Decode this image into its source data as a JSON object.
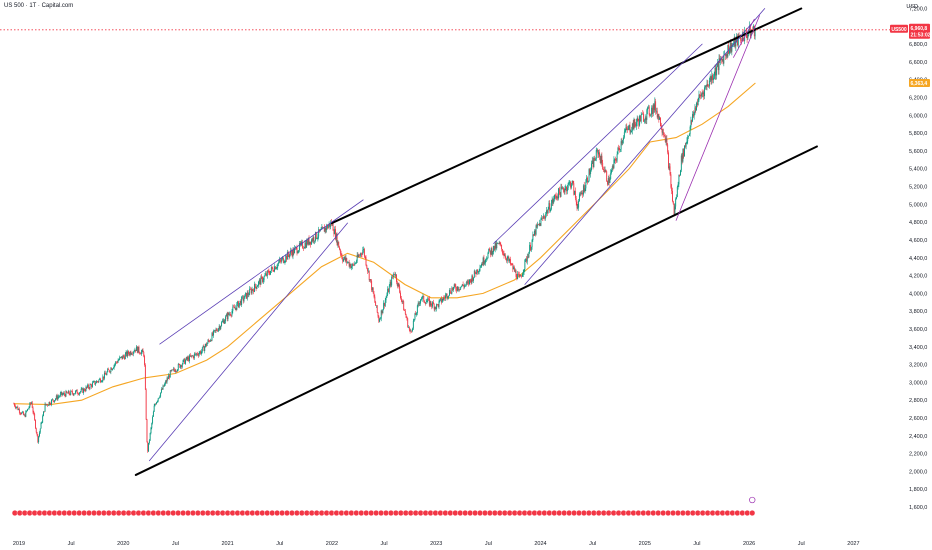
{
  "header": {
    "title": "US 500 · 1T · Capital.com",
    "currency": "USD"
  },
  "price_badges": {
    "symbol_label": "US500",
    "last_price": "6,960,8",
    "countdown": "21:53:02",
    "ma_value": "6,363,4"
  },
  "colors": {
    "up": "#089981",
    "down": "#f23645",
    "ma": "#f5a623",
    "channel": "#000000",
    "sub_channel": "#5b3fb5",
    "last_line": "#f23645",
    "event_marker": "#f23645"
  },
  "chart_data": {
    "type": "candlestick",
    "title": "US 500 · 1T · Capital.com",
    "ylabel": "USD",
    "ylim": [
      1520,
      7300
    ],
    "y_ticks": [
      {
        "v": 1600,
        "label": "1,600,0"
      },
      {
        "v": 1800,
        "label": "1,800,0"
      },
      {
        "v": 2000,
        "label": "2,000,0"
      },
      {
        "v": 2200,
        "label": "2,200,0"
      },
      {
        "v": 2400,
        "label": "2,400,0"
      },
      {
        "v": 2600,
        "label": "2,600,0"
      },
      {
        "v": 2800,
        "label": "2,800,0"
      },
      {
        "v": 3000,
        "label": "3,000,0"
      },
      {
        "v": 3200,
        "label": "3,200,0"
      },
      {
        "v": 3400,
        "label": "3,400,0"
      },
      {
        "v": 3600,
        "label": "3,600,0"
      },
      {
        "v": 3800,
        "label": "3,800,0"
      },
      {
        "v": 4000,
        "label": "4,000,0"
      },
      {
        "v": 4200,
        "label": "4,200,0"
      },
      {
        "v": 4400,
        "label": "4,400,0"
      },
      {
        "v": 4600,
        "label": "4,600,0"
      },
      {
        "v": 4800,
        "label": "4,800,0"
      },
      {
        "v": 5000,
        "label": "5,000,0"
      },
      {
        "v": 5200,
        "label": "5,200,0"
      },
      {
        "v": 5400,
        "label": "5,400,0"
      },
      {
        "v": 5600,
        "label": "5,600,0"
      },
      {
        "v": 5800,
        "label": "5,800,0"
      },
      {
        "v": 6000,
        "label": "6,000,0"
      },
      {
        "v": 6200,
        "label": "6,200,0"
      },
      {
        "v": 6400,
        "label": "6,400,0"
      },
      {
        "v": 6600,
        "label": "6,600,0"
      },
      {
        "v": 6800,
        "label": "6,800,0"
      },
      {
        "v": 7000,
        "label": "7,000,0"
      },
      {
        "v": 7200,
        "label": "7,200,0"
      }
    ],
    "x_range": [
      2018.95,
      2027.35
    ],
    "x_ticks": [
      {
        "t": 2019.0,
        "label": "2019"
      },
      {
        "t": 2019.5,
        "label": "Jul"
      },
      {
        "t": 2020.0,
        "label": "2020"
      },
      {
        "t": 2020.5,
        "label": "Jul"
      },
      {
        "t": 2021.0,
        "label": "2021"
      },
      {
        "t": 2021.5,
        "label": "Jul"
      },
      {
        "t": 2022.0,
        "label": "2022"
      },
      {
        "t": 2022.5,
        "label": "Jul"
      },
      {
        "t": 2023.0,
        "label": "2023"
      },
      {
        "t": 2023.5,
        "label": "Jul"
      },
      {
        "t": 2024.0,
        "label": "2024"
      },
      {
        "t": 2024.5,
        "label": "Jul"
      },
      {
        "t": 2025.0,
        "label": "2025"
      },
      {
        "t": 2025.5,
        "label": "Jul"
      },
      {
        "t": 2026.0,
        "label": "2026"
      },
      {
        "t": 2026.5,
        "label": "Jul"
      },
      {
        "t": 2027.0,
        "label": "2027"
      }
    ],
    "price_keypoints": [
      [
        2018.95,
        2760
      ],
      [
        2019.05,
        2620
      ],
      [
        2019.12,
        2780
      ],
      [
        2019.18,
        2350
      ],
      [
        2019.25,
        2740
      ],
      [
        2019.4,
        2860
      ],
      [
        2019.6,
        2900
      ],
      [
        2019.8,
        3050
      ],
      [
        2019.95,
        3250
      ],
      [
        2020.12,
        3380
      ],
      [
        2020.2,
        3320
      ],
      [
        2020.23,
        2200
      ],
      [
        2020.3,
        2750
      ],
      [
        2020.45,
        3100
      ],
      [
        2020.6,
        3250
      ],
      [
        2020.75,
        3350
      ],
      [
        2020.9,
        3600
      ],
      [
        2021.0,
        3750
      ],
      [
        2021.2,
        4000
      ],
      [
        2021.45,
        4300
      ],
      [
        2021.6,
        4450
      ],
      [
        2021.8,
        4600
      ],
      [
        2022.0,
        4790
      ],
      [
        2022.1,
        4400
      ],
      [
        2022.2,
        4300
      ],
      [
        2022.3,
        4500
      ],
      [
        2022.45,
        3700
      ],
      [
        2022.6,
        4250
      ],
      [
        2022.75,
        3550
      ],
      [
        2022.85,
        3950
      ],
      [
        2023.0,
        3850
      ],
      [
        2023.15,
        4050
      ],
      [
        2023.3,
        4100
      ],
      [
        2023.5,
        4450
      ],
      [
        2023.6,
        4550
      ],
      [
        2023.8,
        4150
      ],
      [
        2023.95,
        4700
      ],
      [
        2024.15,
        5100
      ],
      [
        2024.3,
        5250
      ],
      [
        2024.35,
        4990
      ],
      [
        2024.55,
        5600
      ],
      [
        2024.65,
        5250
      ],
      [
        2024.8,
        5800
      ],
      [
        2024.95,
        5950
      ],
      [
        2025.1,
        6100
      ],
      [
        2025.2,
        5750
      ],
      [
        2025.28,
        4900
      ],
      [
        2025.35,
        5500
      ],
      [
        2025.5,
        6150
      ],
      [
        2025.65,
        6450
      ],
      [
        2025.8,
        6750
      ],
      [
        2025.95,
        6900
      ],
      [
        2026.06,
        6960
      ]
    ],
    "moving_average": [
      [
        2018.95,
        2760
      ],
      [
        2019.3,
        2750
      ],
      [
        2019.6,
        2800
      ],
      [
        2019.9,
        2950
      ],
      [
        2020.2,
        3050
      ],
      [
        2020.5,
        3100
      ],
      [
        2020.8,
        3250
      ],
      [
        2021.0,
        3400
      ],
      [
        2021.3,
        3700
      ],
      [
        2021.6,
        4000
      ],
      [
        2021.9,
        4300
      ],
      [
        2022.15,
        4450
      ],
      [
        2022.4,
        4350
      ],
      [
        2022.7,
        4100
      ],
      [
        2022.95,
        3950
      ],
      [
        2023.2,
        3950
      ],
      [
        2023.45,
        4000
      ],
      [
        2023.75,
        4150
      ],
      [
        2024.0,
        4400
      ],
      [
        2024.3,
        4750
      ],
      [
        2024.6,
        5100
      ],
      [
        2024.85,
        5400
      ],
      [
        2025.05,
        5700
      ],
      [
        2025.3,
        5750
      ],
      [
        2025.55,
        5900
      ],
      [
        2025.8,
        6100
      ],
      [
        2026.06,
        6363
      ]
    ],
    "trendlines": [
      {
        "name": "channel-upper",
        "p1": [
          2022.0,
          4790
        ],
        "p2": [
          2026.5,
          7200
        ],
        "color": "#000000",
        "width": 2
      },
      {
        "name": "channel-lower",
        "p1": [
          2020.12,
          1960
        ],
        "p2": [
          2026.65,
          5650
        ],
        "color": "#000000",
        "width": 2
      },
      {
        "name": "up-2020-upper",
        "p1": [
          2020.35,
          3430
        ],
        "p2": [
          2022.3,
          5050
        ],
        "color": "#5b3fb5",
        "width": 0.8
      },
      {
        "name": "up-2020-lower",
        "p1": [
          2020.25,
          2120
        ],
        "p2": [
          2022.15,
          4790
        ],
        "color": "#5b3fb5",
        "width": 0.8
      },
      {
        "name": "up-2023-upper",
        "p1": [
          2023.55,
          4560
        ],
        "p2": [
          2025.55,
          6800
        ],
        "color": "#5b3fb5",
        "width": 0.8
      },
      {
        "name": "up-2023-lower",
        "p1": [
          2023.85,
          4100
        ],
        "p2": [
          2026.15,
          7200
        ],
        "color": "#5b3fb5",
        "width": 0.8
      },
      {
        "name": "up-2025-steep",
        "p1": [
          2025.3,
          4820
        ],
        "p2": [
          2026.1,
          7120
        ],
        "color": "#9b2fb0",
        "width": 0.8
      },
      {
        "name": "short-upper-2025",
        "p1": [
          2025.85,
          6650
        ],
        "p2": [
          2026.05,
          7080
        ],
        "color": "#9b2fb0",
        "width": 0.8
      }
    ],
    "last_price": 6960.8,
    "ma_last": 6363.4,
    "event_markers_x_range": [
      2018.96,
      2026.03
    ],
    "event_marker_count": 150
  }
}
